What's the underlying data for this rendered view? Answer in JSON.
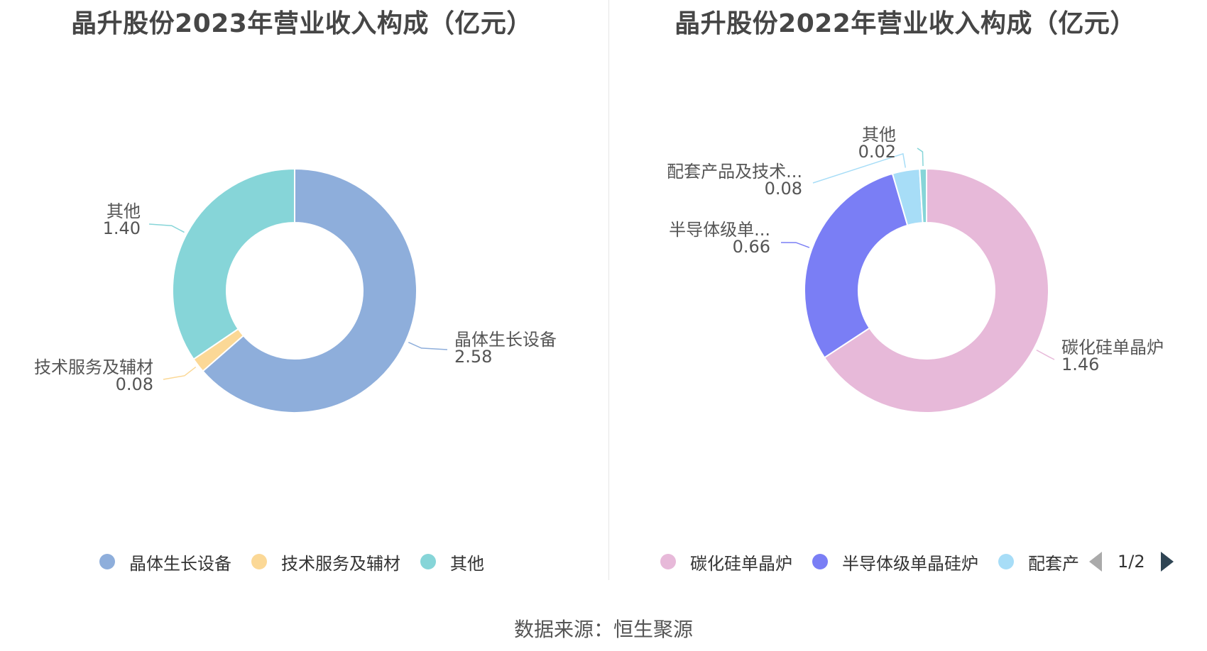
{
  "source_label": "数据来源：恒生聚源",
  "chart_data": [
    {
      "type": "pie",
      "title": "晶升股份2023年营业收入构成（亿元）",
      "slices": [
        {
          "label": "晶体生长设备",
          "legend": "晶体生长设备",
          "value": 2.58,
          "value_text": "2.58",
          "color": "#8eaedb"
        },
        {
          "label": "技术服务及辅材",
          "legend": "技术服务及辅材",
          "value": 0.08,
          "value_text": "0.08",
          "color": "#fbd896"
        },
        {
          "label": "其他",
          "legend": "其他",
          "value": 1.4,
          "value_text": "1.40",
          "color": "#86d5d8"
        }
      ],
      "legend": {
        "items": [
          "晶体生长设备",
          "技术服务及辅材",
          "其他"
        ],
        "placement": "bottom"
      }
    },
    {
      "type": "pie",
      "title": "晶升股份2022年营业收入构成（亿元）",
      "slices": [
        {
          "label": "碳化硅单晶炉",
          "legend": "碳化硅单晶炉",
          "value": 1.46,
          "value_text": "1.46",
          "color": "#e7b9d9"
        },
        {
          "label": "半导体级单...",
          "legend": "半导体级单晶硅炉",
          "value": 0.66,
          "value_text": "0.66",
          "color": "#7a7ef5"
        },
        {
          "label": "配套产品及技术...",
          "legend": "配套产",
          "value": 0.08,
          "value_text": "0.08",
          "color": "#a7ddf7"
        },
        {
          "label": "其他",
          "legend": "",
          "value": 0.02,
          "value_text": "0.02",
          "color": "#86d5d8"
        }
      ],
      "legend": {
        "items": [
          "碳化硅单晶炉",
          "半导体级单晶硅炉",
          "配套产"
        ],
        "placement": "bottom",
        "page": "1/2"
      }
    }
  ]
}
